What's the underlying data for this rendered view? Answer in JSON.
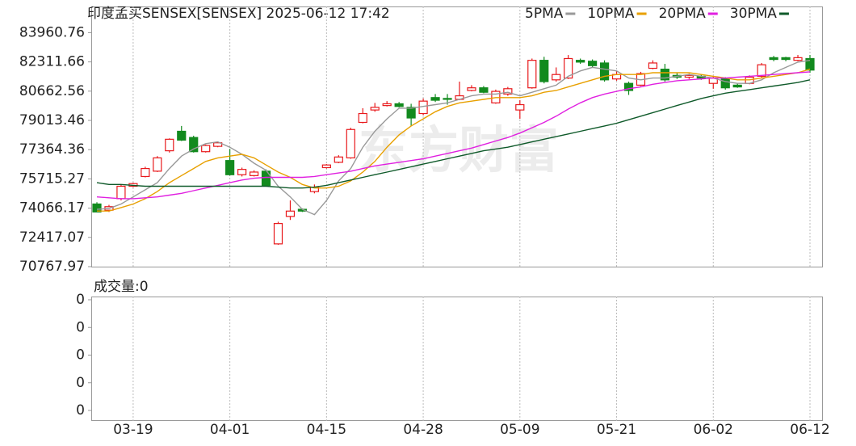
{
  "chart_data": [
    {
      "type": "candlestick",
      "title": "印度孟买SENSEX[SENSEX] 2025-06-12 17:42",
      "watermark": "东方财富",
      "categories": [
        null,
        null,
        null,
        "03-19",
        null,
        null,
        null,
        null,
        null,
        null,
        null,
        "04-01",
        null,
        null,
        null,
        null,
        null,
        null,
        null,
        "04-15",
        null,
        null,
        null,
        null,
        null,
        null,
        null,
        "04-28",
        null,
        null,
        null,
        null,
        null,
        null,
        null,
        "05-09",
        null,
        null,
        null,
        null,
        null,
        null,
        null,
        "05-21",
        null,
        null,
        null,
        null,
        null,
        null,
        null,
        "06-02",
        null,
        null,
        null,
        null,
        null,
        null,
        null,
        "06-12"
      ],
      "open": [
        74300,
        73950,
        74600,
        75300,
        75850,
        76150,
        77300,
        78400,
        78050,
        77250,
        77550,
        76750,
        75950,
        75900,
        76150,
        72050,
        73600,
        74000,
        75000,
        76350,
        76650,
        76900,
        78900,
        79600,
        79850,
        79950,
        79750,
        79400,
        80300,
        80250,
        80200,
        80700,
        80850,
        80000,
        80500,
        79600,
        80850,
        82400,
        81300,
        81400,
        82400,
        82350,
        82250,
        81350,
        81100,
        81000,
        81950,
        81900,
        81550,
        81450,
        81500,
        81100,
        81350,
        81000,
        81100,
        81500,
        82550,
        82550,
        82400,
        82500
      ],
      "high": [
        74400,
        74250,
        75400,
        75500,
        76400,
        77000,
        78000,
        78700,
        78150,
        77650,
        77800,
        77400,
        76350,
        76200,
        76250,
        73300,
        74500,
        74050,
        75400,
        76550,
        77050,
        78600,
        79700,
        80000,
        80100,
        80050,
        79950,
        80250,
        80500,
        80500,
        81200,
        81000,
        80950,
        80750,
        80900,
        80150,
        82500,
        82600,
        82000,
        82700,
        82500,
        82450,
        82400,
        81800,
        81200,
        81750,
        82400,
        82200,
        81700,
        81650,
        81600,
        81500,
        81450,
        81100,
        81550,
        82250,
        82650,
        82600,
        82700,
        82700
      ],
      "low": [
        73850,
        73850,
        74500,
        75250,
        75800,
        76100,
        77200,
        77850,
        77200,
        77200,
        77500,
        75900,
        75850,
        75850,
        75300,
        72000,
        73400,
        73850,
        74900,
        76300,
        76600,
        76850,
        78850,
        79500,
        79800,
        79750,
        78700,
        79300,
        80050,
        79900,
        80150,
        80650,
        80550,
        79950,
        80400,
        79100,
        80800,
        81100,
        81200,
        81350,
        82200,
        82000,
        81200,
        81250,
        80450,
        80950,
        81900,
        81200,
        81350,
        81350,
        81300,
        80800,
        80750,
        80850,
        81050,
        81400,
        82350,
        82350,
        82350,
        81700
      ],
      "close": [
        73850,
        74150,
        75300,
        75450,
        76300,
        76900,
        77950,
        77900,
        77250,
        77600,
        77750,
        75950,
        76250,
        76100,
        75350,
        73200,
        73900,
        73900,
        75250,
        76500,
        76950,
        78500,
        79400,
        79750,
        79950,
        79800,
        79150,
        80100,
        80150,
        80200,
        80400,
        80850,
        80600,
        80650,
        80800,
        79900,
        82400,
        81200,
        81600,
        82500,
        82300,
        82100,
        81300,
        81600,
        80700,
        81650,
        82250,
        81300,
        81450,
        81550,
        81400,
        81400,
        80850,
        80900,
        81450,
        82150,
        82450,
        82450,
        82550,
        81850
      ],
      "up_color": "#e8191c",
      "down_color": "#128a1e",
      "ma_series": [
        {
          "name": "5PMA",
          "color": "#999999",
          "values": [
            74000,
            74050,
            74300,
            74700,
            75100,
            75500,
            76300,
            77000,
            77400,
            77700,
            77800,
            77500,
            77100,
            76600,
            76200,
            75300,
            74700,
            74000,
            73700,
            74500,
            75600,
            76300,
            77500,
            78400,
            79100,
            79700,
            79700,
            79800,
            79900,
            80000,
            80200,
            80400,
            80500,
            80500,
            80600,
            80400,
            80600,
            80800,
            81000,
            81500,
            81800,
            82000,
            81900,
            81800,
            81400,
            81300,
            81400,
            81400,
            81500,
            81600,
            81500,
            81400,
            81200,
            81100,
            81100,
            81300,
            81700,
            82000,
            82300,
            82400
          ]
        },
        {
          "name": "10PMA",
          "color": "#e8a000",
          "values": [
            73900,
            73900,
            74100,
            74300,
            74600,
            75000,
            75500,
            75900,
            76300,
            76700,
            76900,
            77000,
            77100,
            76900,
            76500,
            76100,
            75800,
            75400,
            75200,
            75200,
            75300,
            75600,
            76100,
            76700,
            77500,
            78200,
            78700,
            79100,
            79500,
            79800,
            80000,
            80100,
            80200,
            80300,
            80300,
            80300,
            80400,
            80600,
            80700,
            80900,
            81100,
            81300,
            81500,
            81600,
            81600,
            81600,
            81700,
            81700,
            81700,
            81700,
            81600,
            81500,
            81400,
            81300,
            81300,
            81400,
            81500,
            81600,
            81700,
            81900
          ]
        },
        {
          "name": "20PMA",
          "color": "#e020e0",
          "values": [
            74700,
            74650,
            74600,
            74600,
            74650,
            74700,
            74800,
            74900,
            75050,
            75200,
            75350,
            75500,
            75650,
            75750,
            75800,
            75800,
            75800,
            75800,
            75850,
            75950,
            76050,
            76150,
            76300,
            76450,
            76550,
            76650,
            76750,
            76850,
            77000,
            77150,
            77300,
            77450,
            77650,
            77850,
            78050,
            78300,
            78600,
            78900,
            79250,
            79650,
            80000,
            80300,
            80500,
            80650,
            80800,
            80900,
            81050,
            81150,
            81250,
            81300,
            81350,
            81400,
            81400,
            81450,
            81500,
            81550,
            81600,
            81650,
            81700,
            81750
          ]
        },
        {
          "name": "30PMA",
          "color": "#0f5a2a",
          "values": [
            75500,
            75400,
            75400,
            75350,
            75300,
            75300,
            75300,
            75300,
            75300,
            75300,
            75300,
            75300,
            75300,
            75300,
            75300,
            75250,
            75200,
            75200,
            75250,
            75350,
            75500,
            75650,
            75800,
            75950,
            76100,
            76250,
            76400,
            76550,
            76700,
            76850,
            77000,
            77150,
            77300,
            77400,
            77500,
            77650,
            77800,
            77950,
            78100,
            78250,
            78400,
            78550,
            78700,
            78850,
            79050,
            79250,
            79450,
            79650,
            79850,
            80050,
            80250,
            80400,
            80550,
            80650,
            80750,
            80850,
            80950,
            81050,
            81150,
            81300
          ]
        }
      ],
      "ylim": [
        70767.97,
        85437
      ],
      "yticks": [
        83960.76,
        82311.66,
        80662.56,
        79013.46,
        77364.36,
        75715.27,
        74066.17,
        72417.07,
        70767.97
      ],
      "grid": "vertical"
    },
    {
      "type": "bar",
      "title": "成交量:0",
      "ylim": [
        0,
        0.4
      ],
      "yticks": [
        {
          "value": 0.4,
          "label": "0"
        },
        {
          "value": 0.3,
          "label": "0"
        },
        {
          "value": 0.2,
          "label": "0"
        },
        {
          "value": 0.1,
          "label": "0"
        },
        {
          "value": 0,
          "label": "0"
        }
      ]
    }
  ]
}
